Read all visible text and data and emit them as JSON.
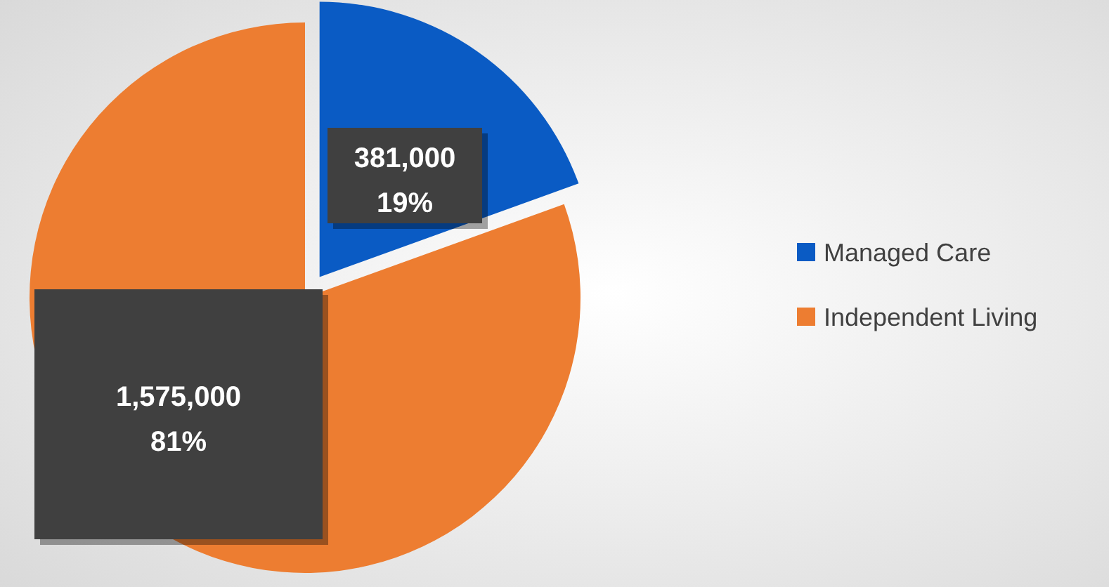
{
  "chart_data": {
    "type": "pie",
    "categories": [
      "Managed Care",
      "Independent Living"
    ],
    "values": [
      381000,
      1575000
    ],
    "colors": [
      "#0a5bc4",
      "#ed7d31"
    ],
    "value_labels": [
      "381,000\n19%",
      "1,575,000\n81%"
    ],
    "legend": "right"
  }
}
